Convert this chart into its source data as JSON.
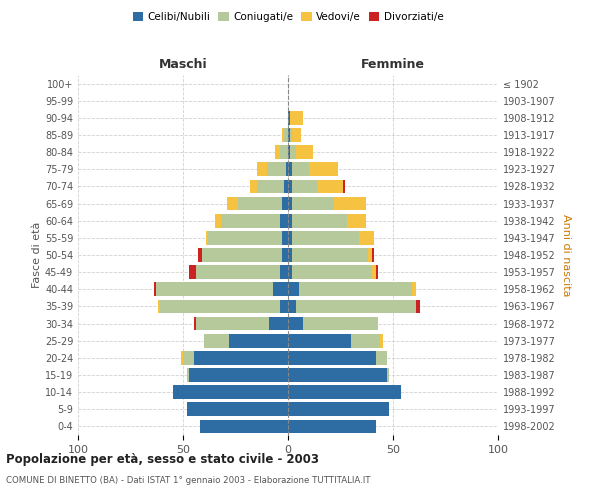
{
  "age_groups": [
    "0-4",
    "5-9",
    "10-14",
    "15-19",
    "20-24",
    "25-29",
    "30-34",
    "35-39",
    "40-44",
    "45-49",
    "50-54",
    "55-59",
    "60-64",
    "65-69",
    "70-74",
    "75-79",
    "80-84",
    "85-89",
    "90-94",
    "95-99",
    "100+"
  ],
  "birth_years": [
    "1998-2002",
    "1993-1997",
    "1988-1992",
    "1983-1987",
    "1978-1982",
    "1973-1977",
    "1968-1972",
    "1963-1967",
    "1958-1962",
    "1953-1957",
    "1948-1952",
    "1943-1947",
    "1938-1942",
    "1933-1937",
    "1928-1932",
    "1923-1927",
    "1918-1922",
    "1913-1917",
    "1908-1912",
    "1903-1907",
    "≤ 1902"
  ],
  "maschi": {
    "celibi": [
      42,
      48,
      55,
      47,
      45,
      28,
      9,
      4,
      7,
      4,
      3,
      3,
      4,
      3,
      2,
      1,
      0,
      0,
      0,
      0,
      0
    ],
    "coniugati": [
      0,
      0,
      0,
      1,
      5,
      12,
      35,
      57,
      56,
      40,
      38,
      35,
      28,
      21,
      13,
      9,
      4,
      2,
      0,
      0,
      0
    ],
    "vedovi": [
      0,
      0,
      0,
      0,
      1,
      0,
      0,
      1,
      0,
      0,
      0,
      1,
      3,
      5,
      3,
      5,
      2,
      1,
      0,
      0,
      0
    ],
    "divorziati": [
      0,
      0,
      0,
      0,
      0,
      0,
      1,
      0,
      1,
      3,
      2,
      0,
      0,
      0,
      0,
      0,
      0,
      0,
      0,
      0,
      0
    ]
  },
  "femmine": {
    "nubili": [
      42,
      48,
      54,
      47,
      42,
      30,
      7,
      4,
      5,
      2,
      2,
      2,
      2,
      2,
      2,
      2,
      1,
      1,
      1,
      0,
      0
    ],
    "coniugate": [
      0,
      0,
      0,
      1,
      5,
      14,
      36,
      57,
      54,
      38,
      36,
      32,
      26,
      20,
      12,
      8,
      3,
      1,
      0,
      0,
      0
    ],
    "vedove": [
      0,
      0,
      0,
      0,
      0,
      1,
      0,
      0,
      2,
      2,
      2,
      7,
      9,
      15,
      12,
      14,
      8,
      4,
      6,
      0,
      0
    ],
    "divorziate": [
      0,
      0,
      0,
      0,
      0,
      0,
      0,
      2,
      0,
      1,
      1,
      0,
      0,
      0,
      1,
      0,
      0,
      0,
      0,
      0,
      0
    ]
  },
  "colors": {
    "celibi": "#2E6DA4",
    "coniugati": "#B5C99A",
    "vedovi": "#F5C242",
    "divorziati": "#CC2222"
  },
  "xlim": 100,
  "title": "Popolazione per età, sesso e stato civile - 2003",
  "subtitle": "COMUNE DI BINETTO (BA) - Dati ISTAT 1° gennaio 2003 - Elaborazione TUTTITALIA.IT",
  "ylabel_left": "Fasce di età",
  "ylabel_right": "Anni di nascita",
  "xlabel_left": "Maschi",
  "xlabel_right": "Femmine",
  "background_color": "#ffffff",
  "grid_color": "#cccccc"
}
